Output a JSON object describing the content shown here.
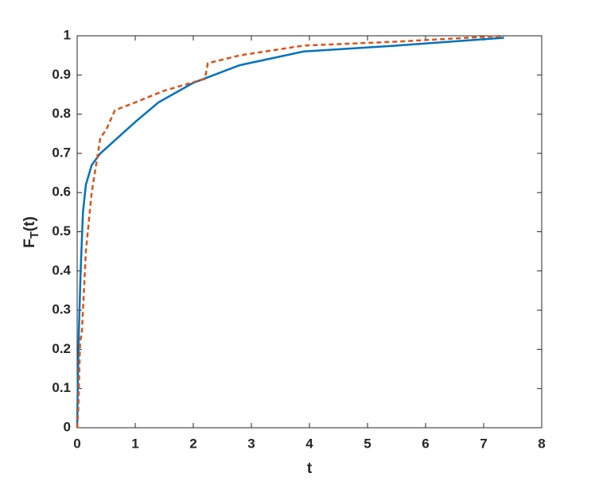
{
  "chart_data": {
    "type": "line",
    "xlabel": "t",
    "ylabel": {
      "main": "F",
      "sub": "T",
      "rest": "(t)"
    },
    "xlim": [
      0,
      8
    ],
    "xticks": [
      0,
      1,
      2,
      3,
      4,
      5,
      6,
      7,
      8
    ],
    "ylim": [
      0,
      1
    ],
    "yticks": [
      0,
      0.1,
      0.2,
      0.3,
      0.4,
      0.5,
      0.6,
      0.7,
      0.8,
      0.9,
      1
    ],
    "grid": false,
    "series": [
      {
        "color": "#0072bd",
        "dash": false,
        "x": [
          0,
          0.01,
          0.03,
          0.06,
          0.1,
          0.15,
          0.25,
          0.4,
          0.7,
          1.0,
          1.4,
          2.0,
          2.8,
          3.9,
          5.5,
          7.35
        ],
        "values": [
          0,
          0.1,
          0.25,
          0.4,
          0.55,
          0.62,
          0.67,
          0.7,
          0.74,
          0.78,
          0.83,
          0.88,
          0.925,
          0.96,
          0.975,
          0.995
        ]
      },
      {
        "color": "#d95319",
        "dash": true,
        "x": [
          0,
          0.02,
          0.05,
          0.08,
          0.15,
          0.25,
          0.4,
          0.5,
          0.65,
          1.0,
          1.5,
          2.2,
          2.25,
          2.8,
          3.9,
          5.5,
          7.35
        ],
        "values": [
          0,
          0.05,
          0.22,
          0.24,
          0.45,
          0.6,
          0.74,
          0.76,
          0.81,
          0.83,
          0.86,
          0.89,
          0.93,
          0.95,
          0.975,
          0.985,
          1.0
        ]
      }
    ]
  }
}
